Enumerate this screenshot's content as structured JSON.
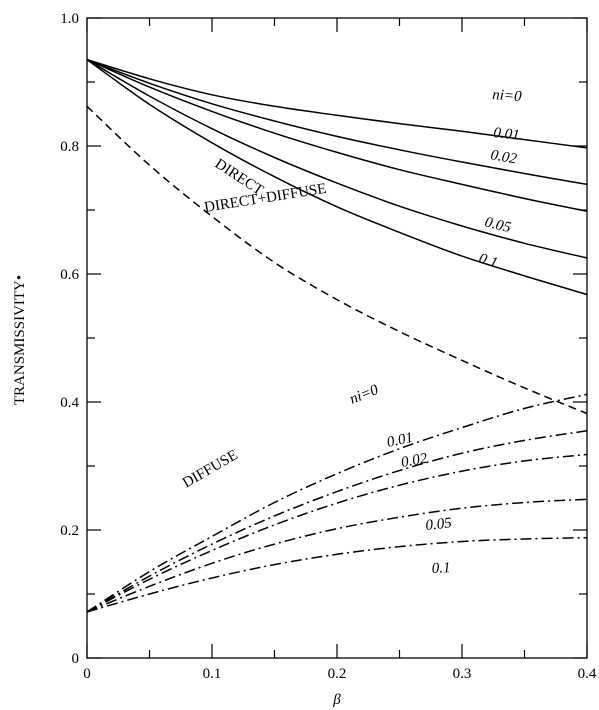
{
  "chart_data": {
    "type": "line",
    "title": "",
    "xlabel": "β",
    "ylabel": "TRANSMISSIVITY•",
    "xlim": [
      0,
      0.4
    ],
    "ylim": [
      0,
      1.0
    ],
    "x_ticks": [
      "0",
      "0.1",
      "0.2",
      "0.3",
      "0.4"
    ],
    "y_ticks": [
      "0",
      "0.2",
      "0.4",
      "0.6",
      "0.8",
      "1.0"
    ],
    "grid": false,
    "groups": [
      {
        "label": "DIRECT+DIFFUSE",
        "style": "solid"
      },
      {
        "label": "DIRECT",
        "style": "dashed"
      },
      {
        "label": "DIFFUSE",
        "style": "dashdot"
      }
    ],
    "series": [
      {
        "group": "DIRECT+DIFFUSE",
        "label": "ni=0",
        "style": "solid",
        "x": [
          0,
          0.05,
          0.1,
          0.15,
          0.2,
          0.25,
          0.3,
          0.35,
          0.4
        ],
        "y": [
          0.935,
          0.905,
          0.88,
          0.862,
          0.848,
          0.835,
          0.823,
          0.81,
          0.797
        ]
      },
      {
        "group": "DIRECT+DIFFUSE",
        "label": "0.01",
        "style": "solid",
        "x": [
          0,
          0.05,
          0.1,
          0.15,
          0.2,
          0.25,
          0.3,
          0.35,
          0.4
        ],
        "y": [
          0.935,
          0.898,
          0.866,
          0.839,
          0.815,
          0.794,
          0.775,
          0.757,
          0.74
        ]
      },
      {
        "group": "DIRECT+DIFFUSE",
        "label": "0.02",
        "style": "solid",
        "x": [
          0,
          0.05,
          0.1,
          0.15,
          0.2,
          0.25,
          0.3,
          0.35,
          0.4
        ],
        "y": [
          0.935,
          0.892,
          0.854,
          0.82,
          0.79,
          0.763,
          0.74,
          0.718,
          0.698
        ]
      },
      {
        "group": "DIRECT+DIFFUSE",
        "label": "0.05",
        "style": "solid",
        "x": [
          0,
          0.05,
          0.1,
          0.15,
          0.2,
          0.25,
          0.3,
          0.35,
          0.4
        ],
        "y": [
          0.935,
          0.878,
          0.827,
          0.782,
          0.742,
          0.706,
          0.675,
          0.648,
          0.625
        ]
      },
      {
        "group": "DIRECT+DIFFUSE",
        "label": "0.1",
        "style": "solid",
        "x": [
          0,
          0.05,
          0.1,
          0.15,
          0.2,
          0.25,
          0.3,
          0.35,
          0.4
        ],
        "y": [
          0.935,
          0.865,
          0.805,
          0.752,
          0.705,
          0.665,
          0.628,
          0.597,
          0.568
        ]
      },
      {
        "group": "DIRECT",
        "label": "",
        "style": "dashed",
        "x": [
          0,
          0.05,
          0.1,
          0.15,
          0.2,
          0.25,
          0.3,
          0.35,
          0.4
        ],
        "y": [
          0.862,
          0.77,
          0.69,
          0.618,
          0.56,
          0.51,
          0.465,
          0.422,
          0.382
        ]
      },
      {
        "group": "DIFFUSE",
        "label": "ni=0",
        "style": "dashdot",
        "x": [
          0,
          0.05,
          0.1,
          0.15,
          0.2,
          0.25,
          0.3,
          0.35,
          0.4
        ],
        "y": [
          0.072,
          0.135,
          0.19,
          0.243,
          0.288,
          0.327,
          0.36,
          0.39,
          0.412
        ]
      },
      {
        "group": "DIFFUSE",
        "label": "0.01",
        "style": "dashdot",
        "x": [
          0,
          0.05,
          0.1,
          0.15,
          0.2,
          0.25,
          0.3,
          0.35,
          0.4
        ],
        "y": [
          0.072,
          0.128,
          0.178,
          0.222,
          0.26,
          0.293,
          0.32,
          0.34,
          0.355
        ]
      },
      {
        "group": "DIFFUSE",
        "label": "0.02",
        "style": "dashdot",
        "x": [
          0,
          0.05,
          0.1,
          0.15,
          0.2,
          0.25,
          0.3,
          0.35,
          0.4
        ],
        "y": [
          0.072,
          0.123,
          0.168,
          0.208,
          0.242,
          0.27,
          0.292,
          0.308,
          0.318
        ]
      },
      {
        "group": "DIFFUSE",
        "label": "0.05",
        "style": "dashdot",
        "x": [
          0,
          0.05,
          0.1,
          0.15,
          0.2,
          0.25,
          0.3,
          0.35,
          0.4
        ],
        "y": [
          0.072,
          0.112,
          0.148,
          0.178,
          0.202,
          0.22,
          0.234,
          0.243,
          0.248
        ]
      },
      {
        "group": "DIFFUSE",
        "label": "0.1",
        "style": "dashdot",
        "x": [
          0,
          0.05,
          0.1,
          0.15,
          0.2,
          0.25,
          0.3,
          0.35,
          0.4
        ],
        "y": [
          0.072,
          0.1,
          0.125,
          0.146,
          0.162,
          0.174,
          0.182,
          0.186,
          0.188
        ]
      }
    ]
  }
}
